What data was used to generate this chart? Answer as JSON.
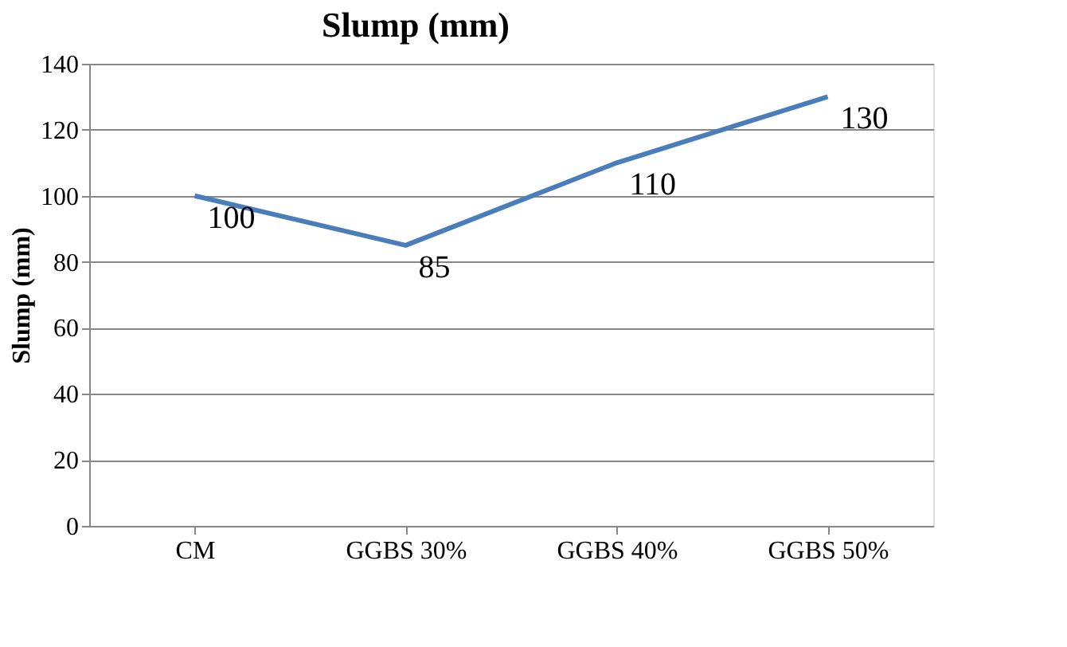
{
  "chart_data": {
    "type": "line",
    "title": "Slump (mm)",
    "ylabel": "Slump (mm)",
    "categories": [
      "CM",
      "GGBS 30%",
      "GGBS 40%",
      "GGBS 50%"
    ],
    "series": [
      {
        "color": "#4a7ebb",
        "values": [
          100,
          85,
          110,
          130
        ]
      }
    ],
    "ylim": [
      0,
      140
    ],
    "yticks": [
      0,
      20,
      40,
      60,
      80,
      100,
      120,
      140
    ],
    "grid": "y",
    "data_labels": true,
    "marker": "none",
    "line_style": "solid"
  }
}
